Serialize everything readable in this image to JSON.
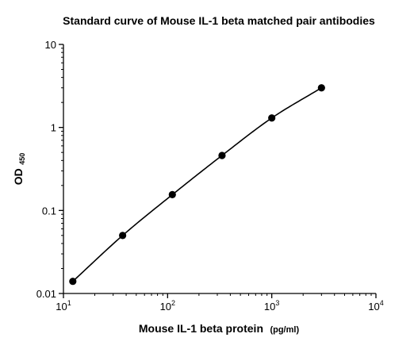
{
  "chart_data": {
    "type": "scatter",
    "title": "Standard curve of Mouse IL-1 beta matched pair antibodies",
    "xlabel": {
      "main": "Mouse IL-1 beta protein",
      "unit": "(pg/ml)"
    },
    "ylabel": {
      "main": "OD",
      "subscript": "450"
    },
    "x_scale": "log",
    "y_scale": "log",
    "xlim": [
      10,
      10000
    ],
    "ylim": [
      0.01,
      10
    ],
    "x_ticks": [
      {
        "value": 10,
        "base": "10",
        "exp": "1"
      },
      {
        "value": 100,
        "base": "10",
        "exp": "2"
      },
      {
        "value": 1000,
        "base": "10",
        "exp": "3"
      },
      {
        "value": 10000,
        "base": "10",
        "exp": "4"
      }
    ],
    "y_ticks": [
      {
        "value": 0.01,
        "label": "0.01"
      },
      {
        "value": 0.1,
        "label": "0.1"
      },
      {
        "value": 1,
        "label": "1"
      },
      {
        "value": 10,
        "label": "10"
      }
    ],
    "series": [
      {
        "x": [
          12.3,
          37,
          111,
          333,
          1000,
          3000
        ],
        "y": [
          0.014,
          0.05,
          0.155,
          0.46,
          1.3,
          3.0
        ],
        "fit_curve": true
      }
    ],
    "grid": false,
    "legend": "none",
    "colors": {
      "marker": "#000000",
      "curve": "#000000",
      "axis": "#000000"
    }
  }
}
